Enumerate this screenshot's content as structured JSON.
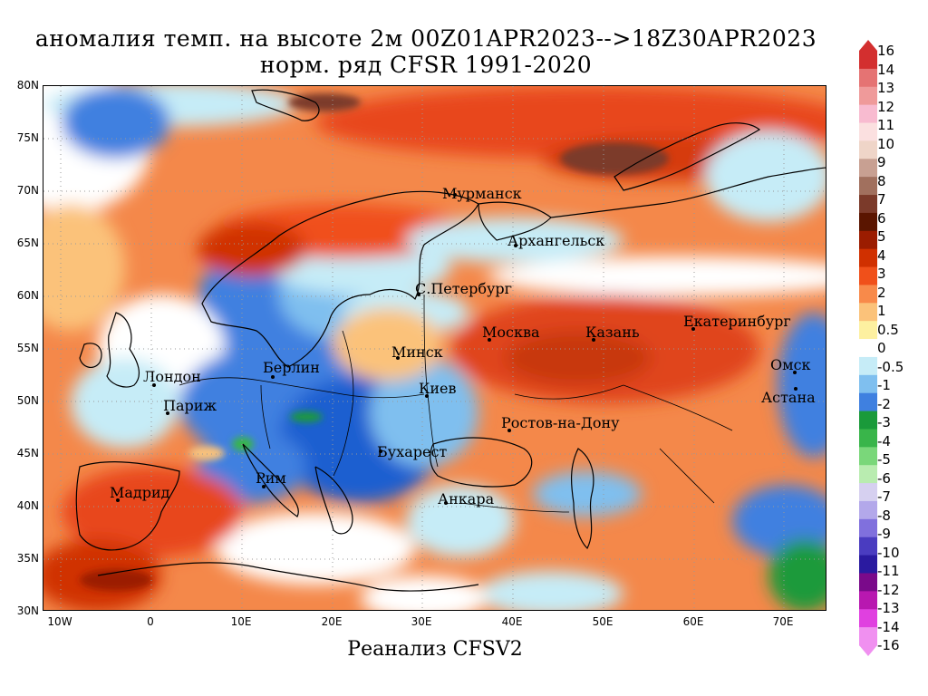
{
  "title": {
    "line1": "аномалия темп. на высоте 2м 00Z01APR2023-->18Z30APR2023",
    "line2": "норм. ряд CFSR 1991-2020"
  },
  "footer": "Реанализ CFSV2",
  "axes": {
    "lat_labels": [
      "80N",
      "75N",
      "70N",
      "65N",
      "60N",
      "55N",
      "50N",
      "45N",
      "40N",
      "35N",
      "30N"
    ],
    "lon_labels": [
      "10W",
      "0",
      "10E",
      "20E",
      "30E",
      "40E",
      "50E",
      "60E",
      "70E"
    ]
  },
  "colorbar": {
    "labels": [
      "16",
      "14",
      "13",
      "12",
      "11",
      "10",
      "9",
      "8",
      "7",
      "6",
      "5",
      "4",
      "3",
      "2",
      "1",
      "0.5",
      "0",
      "-0.5",
      "-1",
      "-2",
      "-3",
      "-4",
      "-5",
      "-6",
      "-7",
      "-8",
      "-9",
      "-10",
      "-11",
      "-12",
      "-13",
      "-14",
      "-16"
    ],
    "colors": [
      "#d32f2f",
      "#e57373",
      "#ef9a9a",
      "#f8bbd0",
      "#fbe0e0",
      "#efd5c8",
      "#c8a092",
      "#a1705e",
      "#7b3a2a",
      "#5a1500",
      "#9b1c00",
      "#d03000",
      "#f0501a",
      "#f88a4a",
      "#fbc27a",
      "#fdf0a0",
      "#ffffff",
      "#c6ecf7",
      "#7fbfef",
      "#3f80e0",
      "#1a9a3a",
      "#39b54a",
      "#7ad77a",
      "#b9ecb0",
      "#d6d0f0",
      "#b3a8ea",
      "#8070dd",
      "#4a3cc0",
      "#2a1aa0",
      "#7a0a8a",
      "#b818b0",
      "#e040e0",
      "#f090f0"
    ]
  },
  "cities": [
    {
      "name": "Мурманск"
    },
    {
      "name": "Архангельск"
    },
    {
      "name": "С.Петербург"
    },
    {
      "name": "Москва"
    },
    {
      "name": "Казань"
    },
    {
      "name": "Екатеринбург"
    },
    {
      "name": "Минск"
    },
    {
      "name": "Берлин"
    },
    {
      "name": "Лондон"
    },
    {
      "name": "Париж"
    },
    {
      "name": "Киев"
    },
    {
      "name": "Омск"
    },
    {
      "name": "Астана"
    },
    {
      "name": "Ростов-на-Дону"
    },
    {
      "name": "Бухарест"
    },
    {
      "name": "Рим"
    },
    {
      "name": "Мадрид"
    },
    {
      "name": "Анкара"
    }
  ]
}
